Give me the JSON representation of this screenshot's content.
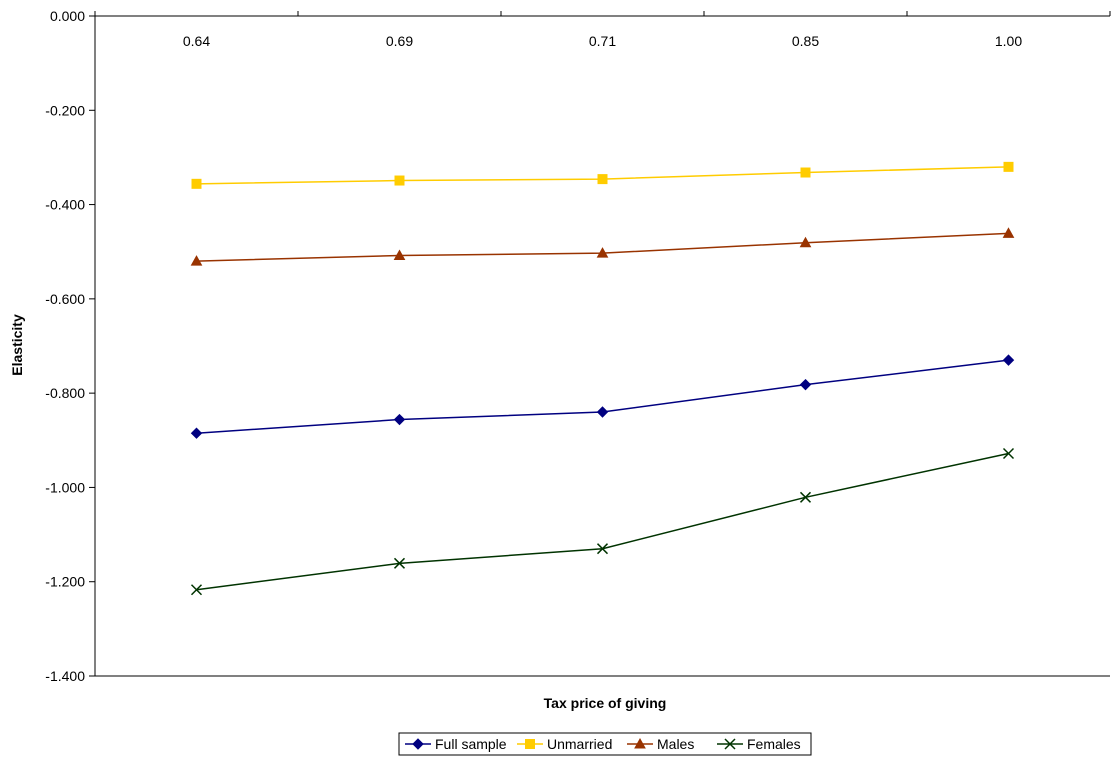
{
  "chart_data": {
    "type": "line",
    "title": "",
    "xlabel": "Tax price of giving",
    "ylabel": "Elasticity",
    "categories": [
      "0.64",
      "0.69",
      "0.71",
      "0.85",
      "1.00"
    ],
    "ylim": [
      -1.4,
      0
    ],
    "y_ticks": [
      "0.000",
      "-0.200",
      "-0.400",
      "-0.600",
      "-0.800",
      "-1.000",
      "-1.200",
      "-1.400"
    ],
    "x_axis_position": "top",
    "grid": false,
    "legend_position": "bottom",
    "series": [
      {
        "name": "Full sample",
        "color": "#000080",
        "marker": "diamond",
        "values": [
          -0.885,
          -0.856,
          -0.84,
          -0.782,
          -0.73
        ]
      },
      {
        "name": "Unmarried",
        "color": "#FFCC00",
        "marker": "square",
        "values": [
          -0.356,
          -0.349,
          -0.346,
          -0.332,
          -0.32
        ]
      },
      {
        "name": "Males",
        "color": "#993300",
        "marker": "triangle",
        "values": [
          -0.52,
          -0.508,
          -0.503,
          -0.481,
          -0.461
        ]
      },
      {
        "name": "Females",
        "color": "#003300",
        "marker": "x",
        "values": [
          -1.217,
          -1.161,
          -1.13,
          -1.021,
          -0.928
        ]
      }
    ]
  }
}
